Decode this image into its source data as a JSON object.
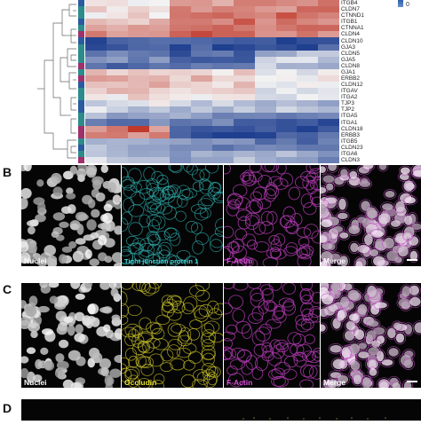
{
  "genes": [
    "ITGB4",
    "CLDN7",
    "CTNND1",
    "ITGB1",
    "CTNNA1",
    "CLDN4",
    "CLDN10",
    "GJA3",
    "CLDN5",
    "GJA5",
    "CLDN8",
    "GJA1",
    "ERBB2",
    "CLDN12",
    "ITGAV",
    "ITGA2",
    "TJP3",
    "TJP2",
    "ITGA5",
    "ITGA1",
    "CLDN18",
    "ERBB3",
    "ITGB5",
    "CLDN23",
    "ITGA6",
    "CLDN3"
  ],
  "legend": {
    "tick": "0"
  },
  "panels": {
    "B": {
      "letter": "B",
      "labels": [
        "Nuclei",
        "Tight junction protein 1",
        "F-Actin",
        "Merge"
      ],
      "label_colors": [
        "#ffffff",
        "#3fd6d6",
        "#d84fd8",
        "#ffffff"
      ]
    },
    "C": {
      "letter": "C",
      "labels": [
        "Nuclei",
        "Occludin",
        "F-Actin",
        "Merge"
      ],
      "label_colors": [
        "#ffffff",
        "#e6e033",
        "#d84fd8",
        "#ffffff"
      ]
    },
    "D": {
      "letter": "D"
    }
  },
  "colors": {
    "high": "#c0392b",
    "low": "#1f3f8f",
    "mid": "#f4f4f4"
  }
}
